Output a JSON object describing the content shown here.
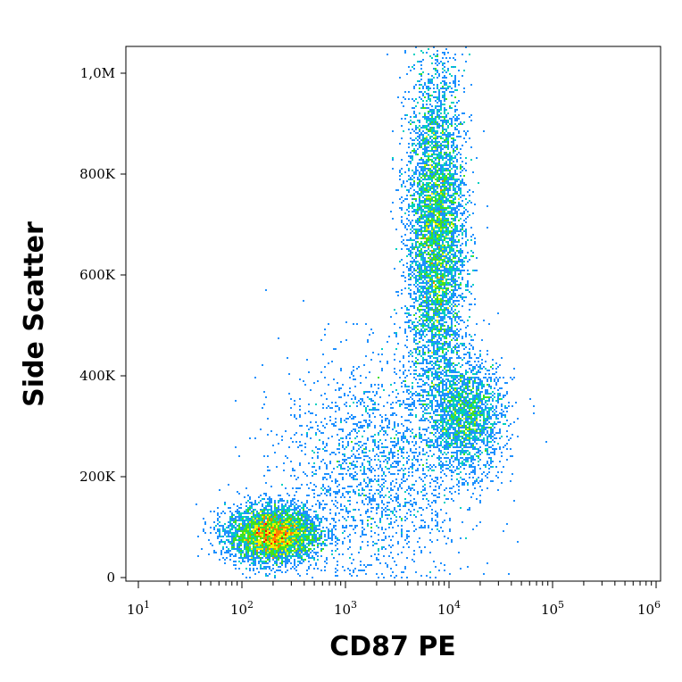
{
  "chart_data": {
    "type": "scatter",
    "xlabel": "CD87 PE",
    "ylabel": "Side Scatter",
    "x_scale": "log",
    "xlim": [
      10,
      1000000
    ],
    "ylim": [
      0,
      1050000
    ],
    "x_tick_labels": [
      {
        "value": 10,
        "base": "10",
        "exp": "1"
      },
      {
        "value": 100,
        "base": "10",
        "exp": "2"
      },
      {
        "value": 1000,
        "base": "10",
        "exp": "3"
      },
      {
        "value": 10000,
        "base": "10",
        "exp": "4"
      },
      {
        "value": 100000,
        "base": "10",
        "exp": "5"
      },
      {
        "value": 1000000,
        "base": "10",
        "exp": "6"
      }
    ],
    "y_tick_labels": [
      {
        "value": 0,
        "label": "0"
      },
      {
        "value": 200000,
        "label": "200K"
      },
      {
        "value": 400000,
        "label": "400K"
      },
      {
        "value": 600000,
        "label": "600K"
      },
      {
        "value": 800000,
        "label": "800K"
      },
      {
        "value": 1000000,
        "label": "1,0M"
      }
    ],
    "grid": false,
    "legend": "none",
    "density_colormap": [
      "#1010c8",
      "#1e90ff",
      "#00d0c0",
      "#40e020",
      "#f0f000",
      "#ff8000",
      "#ff0000"
    ],
    "populations": [
      {
        "x_center": 200,
        "y_center": 85000,
        "relative_density": "highest",
        "x_spread_decades": 0.22,
        "y_spread": 28000,
        "weight": 0.3
      },
      {
        "x_center": 7500,
        "y_center": 680000,
        "relative_density": "high",
        "x_spread_decades": 0.14,
        "y_spread": 170000,
        "weight": 0.42
      },
      {
        "x_center": 15000,
        "y_center": 320000,
        "relative_density": "medium",
        "x_spread_decades": 0.18,
        "y_spread": 55000,
        "weight": 0.14
      },
      {
        "x_center": 2000,
        "y_center": 220000,
        "relative_density": "low",
        "x_spread_decades": 0.45,
        "y_spread": 110000,
        "weight": 0.14
      }
    ]
  }
}
